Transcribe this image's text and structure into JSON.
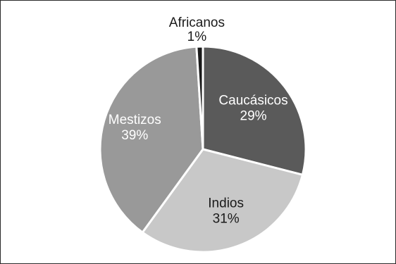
{
  "chart_data": {
    "type": "pie",
    "title": "",
    "start_angle_deg": 0,
    "direction": "clockwise",
    "slices": [
      {
        "label": "Caucásicos",
        "percent_label": "29%",
        "value": 29,
        "color": "#5a5a5a",
        "text_color": "#ffffff"
      },
      {
        "label": "Indios",
        "percent_label": "31%",
        "value": 31,
        "color": "#c8c8c8",
        "text_color": "#1a1a1a"
      },
      {
        "label": "Mestizos",
        "percent_label": "39%",
        "value": 39,
        "color": "#999999",
        "text_color": "#ffffff"
      },
      {
        "label": "Africanos",
        "percent_label": "1%",
        "value": 1,
        "color": "#1a1a1a",
        "text_color": "#1a1a1a",
        "label_outside": true
      }
    ]
  }
}
